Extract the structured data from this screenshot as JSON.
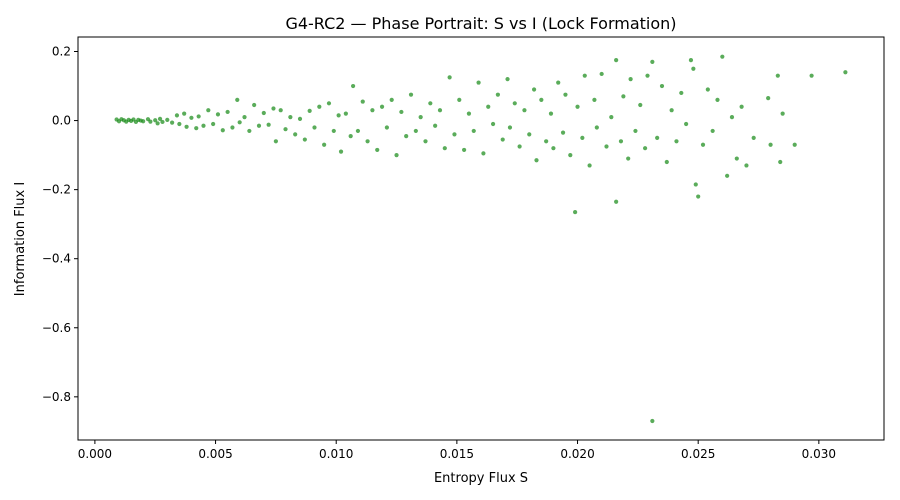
{
  "chart_data": {
    "type": "scatter",
    "title": "G4-RC2 — Phase Portrait: S vs I (Lock Formation)",
    "xlabel": "Entropy Flux S",
    "ylabel": "Information Flux I",
    "xlim": [
      -0.0007,
      0.0327
    ],
    "ylim": [
      -0.925,
      0.242
    ],
    "xticks": [
      0.0,
      0.005,
      0.01,
      0.015,
      0.02,
      0.025,
      0.03
    ],
    "xtick_labels": [
      "0.000",
      "0.005",
      "0.010",
      "0.015",
      "0.020",
      "0.025",
      "0.030"
    ],
    "yticks": [
      -0.8,
      -0.6,
      -0.4,
      -0.2,
      0.0,
      0.2
    ],
    "ytick_labels": [
      "−0.8",
      "−0.6",
      "−0.4",
      "−0.2",
      "0.0",
      "0.2"
    ],
    "grid": false,
    "point_color": "#1a8c1a",
    "series": [
      {
        "points": [
          [
            0.0009,
            0.003
          ],
          [
            0.001,
            -0.002
          ],
          [
            0.0011,
            0.004
          ],
          [
            0.0012,
            0.001
          ],
          [
            0.0013,
            -0.003
          ],
          [
            0.0014,
            0.002
          ],
          [
            0.0015,
            -0.001
          ],
          [
            0.0016,
            0.003
          ],
          [
            0.0017,
            -0.004
          ],
          [
            0.0018,
            0.002
          ],
          [
            0.0019,
            0.0
          ],
          [
            0.002,
            -0.002
          ],
          [
            0.0022,
            0.004
          ],
          [
            0.0023,
            -0.003
          ],
          [
            0.0025,
            0.001
          ],
          [
            0.0026,
            -0.008
          ],
          [
            0.0027,
            0.005
          ],
          [
            0.0028,
            -0.004
          ],
          [
            0.003,
            0.002
          ],
          [
            0.0032,
            -0.006
          ],
          [
            0.0034,
            0.015
          ],
          [
            0.0035,
            -0.01
          ],
          [
            0.0037,
            0.02
          ],
          [
            0.0038,
            -0.018
          ],
          [
            0.004,
            0.008
          ],
          [
            0.0042,
            -0.022
          ],
          [
            0.0043,
            0.012
          ],
          [
            0.0045,
            -0.015
          ],
          [
            0.0047,
            0.03
          ],
          [
            0.0049,
            -0.01
          ],
          [
            0.0051,
            0.018
          ],
          [
            0.0053,
            -0.028
          ],
          [
            0.0055,
            0.025
          ],
          [
            0.0057,
            -0.02
          ],
          [
            0.0059,
            0.06
          ],
          [
            0.006,
            -0.005
          ],
          [
            0.0062,
            0.01
          ],
          [
            0.0064,
            -0.03
          ],
          [
            0.0066,
            0.045
          ],
          [
            0.0068,
            -0.015
          ],
          [
            0.007,
            0.022
          ],
          [
            0.0072,
            -0.012
          ],
          [
            0.0074,
            0.035
          ],
          [
            0.0075,
            -0.06
          ],
          [
            0.0077,
            0.03
          ],
          [
            0.0079,
            -0.025
          ],
          [
            0.0081,
            0.01
          ],
          [
            0.0083,
            -0.04
          ],
          [
            0.0085,
            0.005
          ],
          [
            0.0087,
            -0.055
          ],
          [
            0.0089,
            0.028
          ],
          [
            0.0091,
            -0.02
          ],
          [
            0.0093,
            0.04
          ],
          [
            0.0095,
            -0.07
          ],
          [
            0.0097,
            0.05
          ],
          [
            0.0099,
            -0.03
          ],
          [
            0.0101,
            0.015
          ],
          [
            0.0102,
            -0.09
          ],
          [
            0.0104,
            0.02
          ],
          [
            0.0106,
            -0.045
          ],
          [
            0.0107,
            0.1
          ],
          [
            0.0109,
            -0.03
          ],
          [
            0.0111,
            0.055
          ],
          [
            0.0113,
            -0.06
          ],
          [
            0.0115,
            0.03
          ],
          [
            0.0117,
            -0.085
          ],
          [
            0.0119,
            0.04
          ],
          [
            0.0121,
            -0.02
          ],
          [
            0.0123,
            0.06
          ],
          [
            0.0125,
            -0.1
          ],
          [
            0.0127,
            0.025
          ],
          [
            0.0129,
            -0.045
          ],
          [
            0.0131,
            0.075
          ],
          [
            0.0133,
            -0.03
          ],
          [
            0.0135,
            0.01
          ],
          [
            0.0137,
            -0.06
          ],
          [
            0.0139,
            0.05
          ],
          [
            0.0141,
            -0.015
          ],
          [
            0.0143,
            0.03
          ],
          [
            0.0145,
            -0.08
          ],
          [
            0.0147,
            0.125
          ],
          [
            0.0149,
            -0.04
          ],
          [
            0.0151,
            0.06
          ],
          [
            0.0153,
            -0.085
          ],
          [
            0.0155,
            0.02
          ],
          [
            0.0157,
            -0.03
          ],
          [
            0.0159,
            0.11
          ],
          [
            0.0161,
            -0.095
          ],
          [
            0.0163,
            0.04
          ],
          [
            0.0165,
            -0.01
          ],
          [
            0.0167,
            0.075
          ],
          [
            0.0169,
            -0.055
          ],
          [
            0.0171,
            0.12
          ],
          [
            0.0172,
            -0.02
          ],
          [
            0.0174,
            0.05
          ],
          [
            0.0176,
            -0.075
          ],
          [
            0.0178,
            0.03
          ],
          [
            0.018,
            -0.04
          ],
          [
            0.0182,
            0.09
          ],
          [
            0.0183,
            -0.115
          ],
          [
            0.0185,
            0.06
          ],
          [
            0.0187,
            -0.06
          ],
          [
            0.0189,
            0.02
          ],
          [
            0.019,
            -0.08
          ],
          [
            0.0192,
            0.11
          ],
          [
            0.0194,
            -0.035
          ],
          [
            0.0195,
            0.075
          ],
          [
            0.0197,
            -0.1
          ],
          [
            0.0199,
            -0.265
          ],
          [
            0.02,
            0.04
          ],
          [
            0.0202,
            -0.05
          ],
          [
            0.0203,
            0.13
          ],
          [
            0.0205,
            -0.13
          ],
          [
            0.0207,
            0.06
          ],
          [
            0.0208,
            -0.02
          ],
          [
            0.021,
            0.135
          ],
          [
            0.0212,
            -0.075
          ],
          [
            0.0214,
            0.01
          ],
          [
            0.0216,
            -0.235
          ],
          [
            0.0216,
            0.175
          ],
          [
            0.0218,
            -0.06
          ],
          [
            0.0219,
            0.07
          ],
          [
            0.0221,
            -0.11
          ],
          [
            0.0222,
            0.12
          ],
          [
            0.0224,
            -0.03
          ],
          [
            0.0226,
            0.045
          ],
          [
            0.0228,
            -0.08
          ],
          [
            0.0229,
            0.13
          ],
          [
            0.0231,
            -0.87
          ],
          [
            0.0231,
            0.17
          ],
          [
            0.0233,
            -0.05
          ],
          [
            0.0235,
            0.1
          ],
          [
            0.0237,
            -0.12
          ],
          [
            0.0239,
            0.03
          ],
          [
            0.0241,
            -0.06
          ],
          [
            0.0243,
            0.08
          ],
          [
            0.0245,
            -0.01
          ],
          [
            0.0247,
            0.175
          ],
          [
            0.0248,
            0.15
          ],
          [
            0.0249,
            -0.185
          ],
          [
            0.025,
            -0.22
          ],
          [
            0.0252,
            -0.07
          ],
          [
            0.0254,
            0.09
          ],
          [
            0.0256,
            -0.03
          ],
          [
            0.0258,
            0.06
          ],
          [
            0.026,
            0.185
          ],
          [
            0.0262,
            -0.16
          ],
          [
            0.0264,
            0.01
          ],
          [
            0.0266,
            -0.11
          ],
          [
            0.0268,
            0.04
          ],
          [
            0.027,
            -0.13
          ],
          [
            0.0273,
            -0.05
          ],
          [
            0.0279,
            0.065
          ],
          [
            0.028,
            -0.07
          ],
          [
            0.0283,
            0.13
          ],
          [
            0.0284,
            -0.12
          ],
          [
            0.0285,
            0.02
          ],
          [
            0.029,
            -0.07
          ],
          [
            0.0297,
            0.13
          ],
          [
            0.0311,
            0.14
          ]
        ]
      }
    ]
  }
}
